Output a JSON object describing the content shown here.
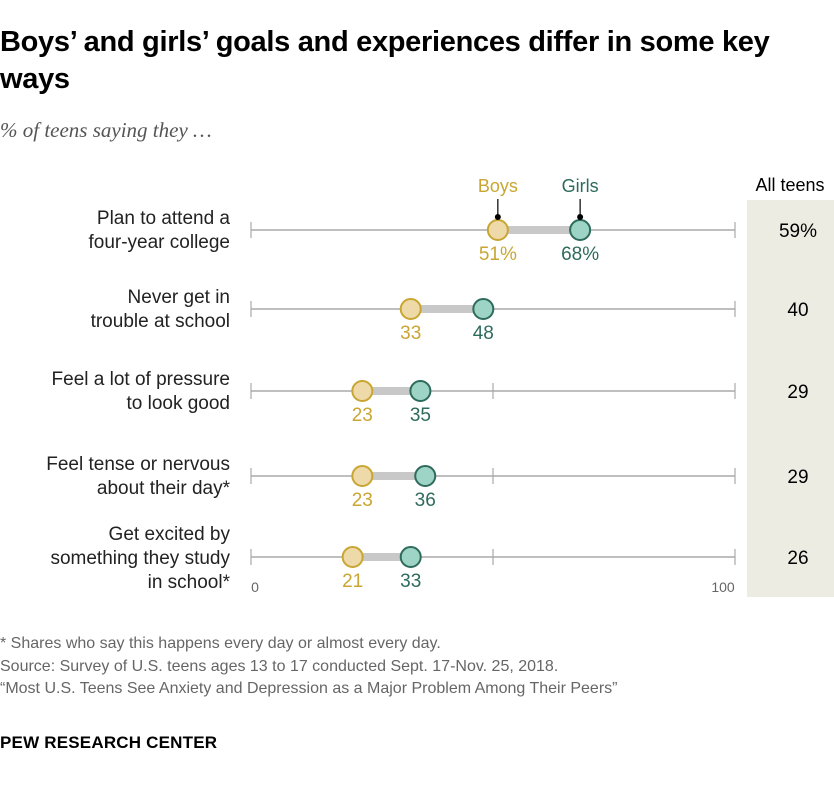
{
  "title": "Boys’ and girls’ goals and experiences differ in some key ways",
  "subtitle": "% of teens saying they …",
  "chart_data": {
    "type": "dot",
    "series": [
      {
        "name": "Boys",
        "color": "#c9a633",
        "fill": "#eed9a8",
        "values": [
          51,
          33,
          23,
          23,
          21
        ]
      },
      {
        "name": "Girls",
        "color": "#2e6b5c",
        "fill": "#9dd4c5",
        "values": [
          68,
          48,
          35,
          36,
          33
        ]
      }
    ],
    "categories": [
      [
        "Plan to attend a",
        "four-year college"
      ],
      [
        "Never get in",
        "trouble at school"
      ],
      [
        "Feel a lot of pressure",
        "to look good"
      ],
      [
        "Feel tense or nervous",
        "about their day*"
      ],
      [
        "Get excited by",
        "something they study",
        "in school*"
      ]
    ],
    "all_teens_header": "All teens",
    "all_teens": [
      59,
      40,
      29,
      29,
      26
    ],
    "xlim": [
      0,
      100
    ],
    "xticks": [
      "0",
      "100"
    ],
    "first_row_suffix": "%"
  },
  "notes": [
    "* Shares who say this happens every day or almost every day.",
    "Source: Survey of U.S. teens ages 13 to 17 conducted Sept. 17-Nov. 25, 2018.",
    "“Most U.S. Teens See Anxiety and Depression as a Major Problem Among Their Peers”"
  ],
  "brand": "PEW RESEARCH CENTER"
}
